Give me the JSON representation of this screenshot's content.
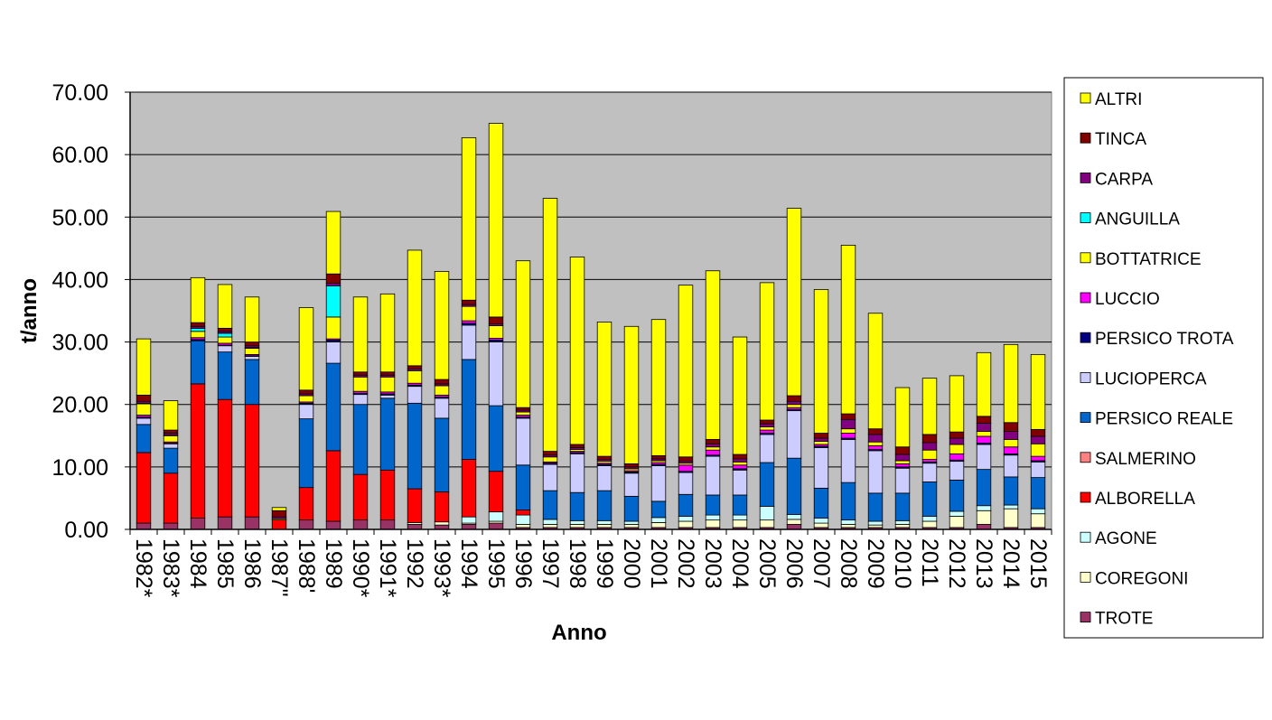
{
  "chart_data": {
    "type": "bar",
    "stacked": true,
    "title": "",
    "xlabel": "Anno",
    "ylabel": "t/anno",
    "ylim": [
      0,
      70
    ],
    "yticks": [
      "0.00",
      "10.00",
      "20.00",
      "30.00",
      "40.00",
      "50.00",
      "60.00",
      "70.00"
    ],
    "grid": true,
    "legend_position": "right",
    "categories": [
      "1982*",
      "1983*",
      "1984",
      "1985",
      "1986",
      "1987\"",
      "1988'",
      "1989",
      "1990*",
      "1991*",
      "1992",
      "1993*",
      "1994",
      "1995",
      "1996",
      "1997",
      "1998",
      "1999",
      "2000",
      "2001",
      "2002",
      "2003",
      "2004",
      "2005",
      "2006",
      "2007",
      "2008",
      "2009",
      "2010",
      "2011",
      "2012",
      "2013",
      "2014",
      "2015"
    ],
    "series": [
      {
        "name": "TROTE",
        "color": "#993366",
        "values": [
          1.0,
          1.0,
          1.8,
          2.0,
          2.0,
          0.0,
          1.5,
          1.3,
          1.5,
          1.5,
          0.8,
          0.7,
          0.8,
          1.0,
          0.3,
          0.3,
          0.3,
          0.3,
          0.3,
          0.3,
          0.3,
          0.3,
          0.3,
          0.3,
          0.8,
          0.3,
          0.3,
          0.3,
          0.3,
          0.3,
          0.3,
          0.8,
          0.3,
          0.3
        ]
      },
      {
        "name": "COREGONI",
        "color": "#FFFFCC",
        "values": [
          0.0,
          0.0,
          0.0,
          0.0,
          0.0,
          0.0,
          0.0,
          0.0,
          0.0,
          0.0,
          0.3,
          0.5,
          0.2,
          0.3,
          0.5,
          0.5,
          0.5,
          0.5,
          0.5,
          0.8,
          1.0,
          1.2,
          1.2,
          1.2,
          0.8,
          0.7,
          0.5,
          0.4,
          0.5,
          1.0,
          1.8,
          2.2,
          3.0,
          2.2
        ]
      },
      {
        "name": "AGONE",
        "color": "#CCFFFF",
        "values": [
          0.0,
          0.0,
          0.0,
          0.0,
          0.0,
          0.0,
          0.0,
          0.0,
          0.0,
          0.0,
          0.0,
          0.0,
          1.0,
          1.5,
          1.5,
          0.8,
          0.6,
          0.6,
          0.5,
          0.8,
          0.8,
          0.8,
          0.8,
          2.2,
          0.8,
          0.8,
          0.7,
          0.6,
          0.6,
          0.8,
          0.8,
          0.8,
          0.6,
          0.8
        ]
      },
      {
        "name": "ALBORELLA",
        "color": "#FF0000",
        "values": [
          11.3,
          8.0,
          21.5,
          18.8,
          18.0,
          1.5,
          5.2,
          11.3,
          7.3,
          8.0,
          5.4,
          4.8,
          9.2,
          6.5,
          0.8,
          0.0,
          0.0,
          0.0,
          0.0,
          0.0,
          0.0,
          0.0,
          0.0,
          0.0,
          0.0,
          0.0,
          0.0,
          0.0,
          0.0,
          0.0,
          0.0,
          0.0,
          0.0,
          0.0
        ]
      },
      {
        "name": "SALMERINO",
        "color": "#FF8080",
        "values": [
          0.0,
          0.0,
          0.0,
          0.0,
          0.0,
          0.0,
          0.0,
          0.0,
          0.0,
          0.0,
          0.0,
          0.0,
          0.0,
          0.0,
          0.0,
          0.0,
          0.0,
          0.0,
          0.0,
          0.0,
          0.0,
          0.0,
          0.0,
          0.0,
          0.0,
          0.0,
          0.0,
          0.0,
          0.0,
          0.0,
          0.0,
          0.0,
          0.0,
          0.0
        ]
      },
      {
        "name": "PERSICO REALE",
        "color": "#0066CC",
        "values": [
          4.5,
          4.0,
          6.9,
          7.6,
          7.2,
          0.0,
          11.0,
          14.0,
          11.2,
          11.5,
          13.7,
          11.8,
          16.0,
          10.5,
          7.2,
          4.6,
          4.5,
          4.8,
          4.0,
          2.6,
          3.5,
          3.2,
          3.2,
          7.0,
          9.0,
          4.8,
          6.0,
          4.5,
          4.4,
          5.5,
          5.0,
          5.8,
          4.5,
          5.0
        ]
      },
      {
        "name": "LUCIOPERCA",
        "color": "#CCCCFF",
        "values": [
          1.0,
          0.7,
          0.0,
          1.0,
          0.5,
          0.0,
          2.3,
          3.4,
          1.6,
          0.5,
          2.7,
          3.2,
          5.5,
          10.2,
          7.5,
          4.2,
          6.2,
          4.0,
          3.7,
          5.7,
          3.5,
          6.2,
          4.0,
          4.5,
          7.6,
          6.5,
          6.9,
          6.8,
          4.0,
          3.0,
          3.0,
          4.0,
          3.5,
          2.5
        ]
      },
      {
        "name": "PERSICO TROTA",
        "color": "#000080",
        "values": [
          0.2,
          0.1,
          0.2,
          0.1,
          0.1,
          0.0,
          0.2,
          0.3,
          0.2,
          0.2,
          0.2,
          0.2,
          0.3,
          0.3,
          0.2,
          0.2,
          0.2,
          0.2,
          0.2,
          0.2,
          0.2,
          0.2,
          0.2,
          0.2,
          0.2,
          0.2,
          0.2,
          0.2,
          0.2,
          0.2,
          0.2,
          0.2,
          0.2,
          0.2
        ]
      },
      {
        "name": "LUCCIO",
        "color": "#FF00FF",
        "values": [
          0.3,
          0.2,
          0.3,
          0.3,
          0.2,
          0.0,
          0.2,
          0.2,
          0.3,
          0.3,
          0.3,
          0.3,
          0.4,
          0.3,
          0.3,
          0.2,
          0.2,
          0.2,
          0.2,
          0.3,
          1.0,
          0.8,
          0.6,
          0.5,
          0.3,
          0.3,
          0.8,
          0.6,
          0.5,
          0.4,
          1.0,
          1.1,
          1.1,
          0.7
        ]
      },
      {
        "name": "BOTTATRICE",
        "color": "#FFFF00",
        "values": [
          1.8,
          1.0,
          1.0,
          1.0,
          1.0,
          0.2,
          1.0,
          3.5,
          2.3,
          2.4,
          2.0,
          1.5,
          2.3,
          2.0,
          0.5,
          0.8,
          0.3,
          0.3,
          0.3,
          0.3,
          0.3,
          0.5,
          0.5,
          0.5,
          0.5,
          0.5,
          0.7,
          0.6,
          0.5,
          1.5,
          1.5,
          0.8,
          1.2,
          2.0
        ]
      },
      {
        "name": "ANGUILLA",
        "color": "#00FFFF",
        "values": [
          0.1,
          0.1,
          0.5,
          0.6,
          0.1,
          0.0,
          0.0,
          5.0,
          0.0,
          0.0,
          0.0,
          0.0,
          0.0,
          0.0,
          0.0,
          0.0,
          0.0,
          0.0,
          0.0,
          0.0,
          0.0,
          0.0,
          0.0,
          0.0,
          0.0,
          0.0,
          0.0,
          0.0,
          0.0,
          0.0,
          0.0,
          0.0,
          0.0,
          0.0
        ]
      },
      {
        "name": "CARPA",
        "color": "#800080",
        "values": [
          0.3,
          0.3,
          0.3,
          0.3,
          0.3,
          0.3,
          0.3,
          0.4,
          0.3,
          0.3,
          0.3,
          0.3,
          0.3,
          0.3,
          0.3,
          0.3,
          0.3,
          0.3,
          0.3,
          0.3,
          0.3,
          0.5,
          0.5,
          0.5,
          0.5,
          0.5,
          1.5,
          1.2,
          1.0,
          1.2,
          1.0,
          1.3,
          1.3,
          1.2
        ]
      },
      {
        "name": "TINCA",
        "color": "#800000",
        "values": [
          1.0,
          0.5,
          0.6,
          0.5,
          0.6,
          1.0,
          0.6,
          1.5,
          0.5,
          0.5,
          0.5,
          0.7,
          0.7,
          1.1,
          0.4,
          0.6,
          0.5,
          0.5,
          0.5,
          0.5,
          0.7,
          0.7,
          0.7,
          0.6,
          0.9,
          0.8,
          0.9,
          0.9,
          1.2,
          1.3,
          1.0,
          1.1,
          1.4,
          1.1
        ]
      },
      {
        "name": "ALTRI",
        "color": "#FFFF00",
        "values": [
          9.0,
          4.7,
          7.2,
          7.0,
          7.2,
          0.5,
          13.2,
          10.0,
          12.0,
          12.5,
          18.5,
          17.3,
          26.0,
          31.0,
          23.5,
          40.5,
          30.0,
          21.5,
          22.0,
          21.8,
          27.5,
          27.0,
          18.8,
          22.0,
          30.0,
          23.0,
          27.0,
          18.5,
          9.5,
          9.0,
          9.0,
          10.2,
          12.5,
          12.0
        ]
      }
    ],
    "legend_order": [
      "ALTRI",
      "TINCA",
      "CARPA",
      "ANGUILLA",
      "BOTTATRICE",
      "LUCCIO",
      "PERSICO TROTA",
      "LUCIOPERCA",
      "PERSICO REALE",
      "SALMERINO",
      "ALBORELLA",
      "AGONE",
      "COREGONI",
      "TROTE"
    ]
  }
}
